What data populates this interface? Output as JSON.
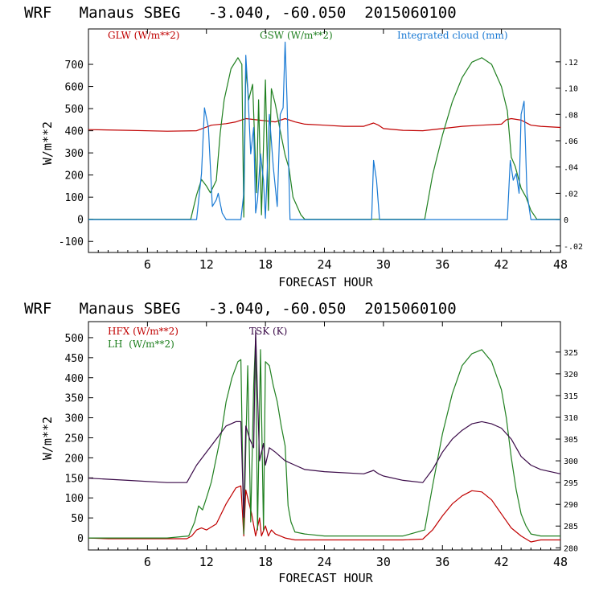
{
  "colors": {
    "red": "#c00000",
    "green": "#208020",
    "blue": "#1a7ad4",
    "purple": "#3a0a48",
    "frame": "#000000"
  },
  "chart_data": [
    {
      "type": "line",
      "title": "WRF   Manaus SBEG   -3.040, -60.050  2015060100",
      "xlabel": "FORECAST HOUR",
      "ylabel": "W/m**2",
      "xlim": [
        0,
        48
      ],
      "ylim": [
        -150,
        860
      ],
      "y2lim": [
        -0.025,
        0.145
      ],
      "x_ticks": [
        6,
        12,
        18,
        24,
        30,
        36,
        42,
        48
      ],
      "y_ticks": [
        -100,
        0,
        100,
        200,
        300,
        400,
        500,
        600,
        700
      ],
      "y2_ticks": [
        -0.02,
        0,
        0.02,
        0.04,
        0.06,
        0.08,
        0.1,
        0.12
      ],
      "y2_tick_labels": [
        "-.02",
        "0",
        ".02",
        ".04",
        ".06",
        ".08",
        ".10",
        ".12"
      ],
      "series": [
        {
          "name": "GLW (W/m**2)",
          "axis": "left",
          "color": "red",
          "x": [
            0,
            4,
            8,
            11,
            12.5,
            14,
            15,
            16,
            17,
            18,
            19,
            20,
            21,
            22,
            24,
            26,
            28,
            29,
            29.5,
            30,
            32,
            34,
            36,
            38,
            40,
            42,
            42.5,
            43,
            44,
            45,
            46,
            48
          ],
          "y": [
            405,
            402,
            398,
            400,
            425,
            432,
            440,
            455,
            450,
            445,
            440,
            455,
            440,
            430,
            425,
            420,
            420,
            435,
            425,
            410,
            402,
            400,
            410,
            420,
            425,
            430,
            450,
            455,
            448,
            425,
            420,
            415
          ]
        },
        {
          "name": "GSW (W/m**2)",
          "axis": "left",
          "color": "green",
          "x": [
            0,
            10.4,
            11,
            11.5,
            12,
            12.4,
            13,
            13.4,
            13.8,
            14.5,
            15.2,
            15.6,
            15.8,
            16,
            16.3,
            16.7,
            17.1,
            17.3,
            17.6,
            18,
            18.3,
            18.6,
            19,
            19.5,
            20,
            20.4,
            20.8,
            21.2,
            21.6,
            22,
            24,
            28,
            32,
            34.2,
            35,
            36,
            37,
            38,
            39,
            40,
            41,
            42,
            42.6,
            43,
            43.4,
            44,
            44.5,
            45,
            45.6,
            46,
            48
          ],
          "y": [
            0,
            0,
            110,
            180,
            150,
            120,
            175,
            390,
            540,
            680,
            730,
            700,
            10,
            680,
            540,
            610,
            120,
            540,
            20,
            630,
            40,
            590,
            520,
            400,
            290,
            230,
            100,
            60,
            20,
            0,
            0,
            0,
            0,
            0,
            200,
            380,
            530,
            640,
            710,
            730,
            700,
            600,
            490,
            280,
            240,
            140,
            100,
            40,
            0,
            0,
            0
          ]
        },
        {
          "name": "Integrated cloud (mm)",
          "axis": "right",
          "color": "blue",
          "x": [
            0,
            11,
            11.5,
            11.8,
            12.2,
            12.6,
            13,
            13.2,
            13.6,
            14,
            15.5,
            15.8,
            16,
            16.2,
            16.5,
            16.8,
            17,
            17.2,
            17.5,
            17.8,
            18,
            18.4,
            18.8,
            19.2,
            19.5,
            19.8,
            20,
            20.2,
            20.5,
            21,
            28.8,
            29,
            29.3,
            29.6,
            30,
            42.6,
            42.9,
            43.2,
            43.5,
            43.8,
            44,
            44.3,
            44.6,
            45,
            48
          ],
          "y": [
            0,
            0,
            0.035,
            0.085,
            0.07,
            0.01,
            0.015,
            0.02,
            0.005,
            0,
            0,
            0.02,
            0.125,
            0.1,
            0.05,
            0.07,
            0.005,
            0.015,
            0.05,
            0.03,
            0.001,
            0.08,
            0.04,
            0.01,
            0.08,
            0.085,
            0.135,
            0.09,
            0,
            0,
            0,
            0.045,
            0.03,
            0,
            0,
            0,
            0.045,
            0.03,
            0.035,
            0.02,
            0.08,
            0.09,
            0.02,
            0,
            0
          ]
        }
      ],
      "legend": [
        "GLW (W/m**2)",
        "GSW (W/m**2)",
        "Integrated cloud (mm)"
      ]
    },
    {
      "type": "line",
      "title": "WRF   Manaus SBEG   -3.040, -60.050  2015060100",
      "xlabel": "FORECAST HOUR",
      "ylabel": "W/m**2",
      "xlim": [
        0,
        48
      ],
      "ylim": [
        -30,
        540
      ],
      "y2lim": [
        279.5,
        332
      ],
      "x_ticks": [
        6,
        12,
        18,
        24,
        30,
        36,
        42,
        48
      ],
      "y_ticks": [
        0,
        50,
        100,
        150,
        200,
        250,
        300,
        350,
        400,
        450,
        500
      ],
      "y2_ticks": [
        280,
        285,
        290,
        295,
        300,
        305,
        310,
        315,
        320,
        325
      ],
      "series": [
        {
          "name": "HFX (W/m**2)",
          "axis": "left",
          "color": "red",
          "x": [
            0,
            2,
            8,
            10,
            10.5,
            11,
            11.5,
            12,
            13,
            14,
            15,
            15.5,
            15.8,
            16,
            16.3,
            16.6,
            17,
            17.4,
            17.6,
            18,
            18.3,
            18.6,
            19,
            19.5,
            20,
            21,
            24,
            28,
            32,
            34,
            35,
            36,
            37,
            38,
            39,
            40,
            41,
            42,
            43,
            44,
            45,
            46,
            48
          ],
          "y": [
            0,
            -2,
            -2,
            -2,
            5,
            20,
            25,
            20,
            35,
            85,
            125,
            130,
            5,
            120,
            90,
            60,
            5,
            50,
            5,
            30,
            5,
            20,
            10,
            5,
            0,
            -5,
            -5,
            -5,
            -5,
            -3,
            20,
            55,
            85,
            105,
            118,
            115,
            95,
            60,
            25,
            5,
            -10,
            -5,
            -5
          ]
        },
        {
          "name": "LH  (W/m**2)",
          "axis": "left",
          "color": "green",
          "x": [
            0,
            4,
            8,
            10.2,
            10.8,
            11.2,
            11.6,
            12,
            12.5,
            13,
            13.5,
            14,
            14.6,
            15.2,
            15.5,
            15.8,
            16.2,
            16.5,
            16.8,
            17,
            17.2,
            17.5,
            17.8,
            18,
            18.4,
            18.8,
            19.2,
            19.6,
            20,
            20.3,
            20.6,
            21,
            22,
            24,
            28,
            32,
            34.2,
            35,
            36,
            37,
            38,
            39,
            40,
            41,
            42,
            42.5,
            43,
            43.5,
            44,
            44.5,
            45,
            46,
            48
          ],
          "y": [
            0,
            0,
            0,
            5,
            40,
            80,
            70,
            100,
            140,
            200,
            260,
            340,
            400,
            440,
            445,
            10,
            430,
            40,
            380,
            500,
            20,
            470,
            20,
            440,
            430,
            380,
            340,
            280,
            230,
            80,
            40,
            15,
            10,
            5,
            5,
            5,
            20,
            130,
            260,
            360,
            430,
            460,
            470,
            440,
            370,
            300,
            200,
            120,
            60,
            30,
            10,
            5,
            5
          ]
        },
        {
          "name": "TSK (K)",
          "axis": "right",
          "color": "purple",
          "x": [
            0,
            4,
            8,
            10,
            10.5,
            11,
            12,
            13,
            14,
            15,
            15.5,
            15.8,
            16,
            16.4,
            16.8,
            17,
            17.4,
            17.8,
            18,
            18.4,
            19,
            20,
            21,
            22,
            24,
            28,
            29,
            29.5,
            30,
            32,
            34,
            35,
            36,
            37,
            38,
            39,
            40,
            41,
            42,
            43,
            44,
            45,
            46,
            48
          ],
          "y": [
            296,
            295.5,
            295,
            295,
            297,
            299,
            302,
            305,
            308,
            309,
            309,
            287,
            308,
            305,
            303,
            330,
            300,
            304,
            299,
            303,
            302,
            300,
            299,
            298,
            297.5,
            297,
            297.8,
            297,
            296.5,
            295.5,
            295,
            298,
            302,
            305,
            307,
            308.5,
            309,
            308.5,
            307.5,
            305,
            301,
            299,
            298,
            297
          ]
        }
      ],
      "legend": [
        "HFX (W/m**2)",
        "LH  (W/m**2)",
        "TSK (K)"
      ]
    }
  ]
}
